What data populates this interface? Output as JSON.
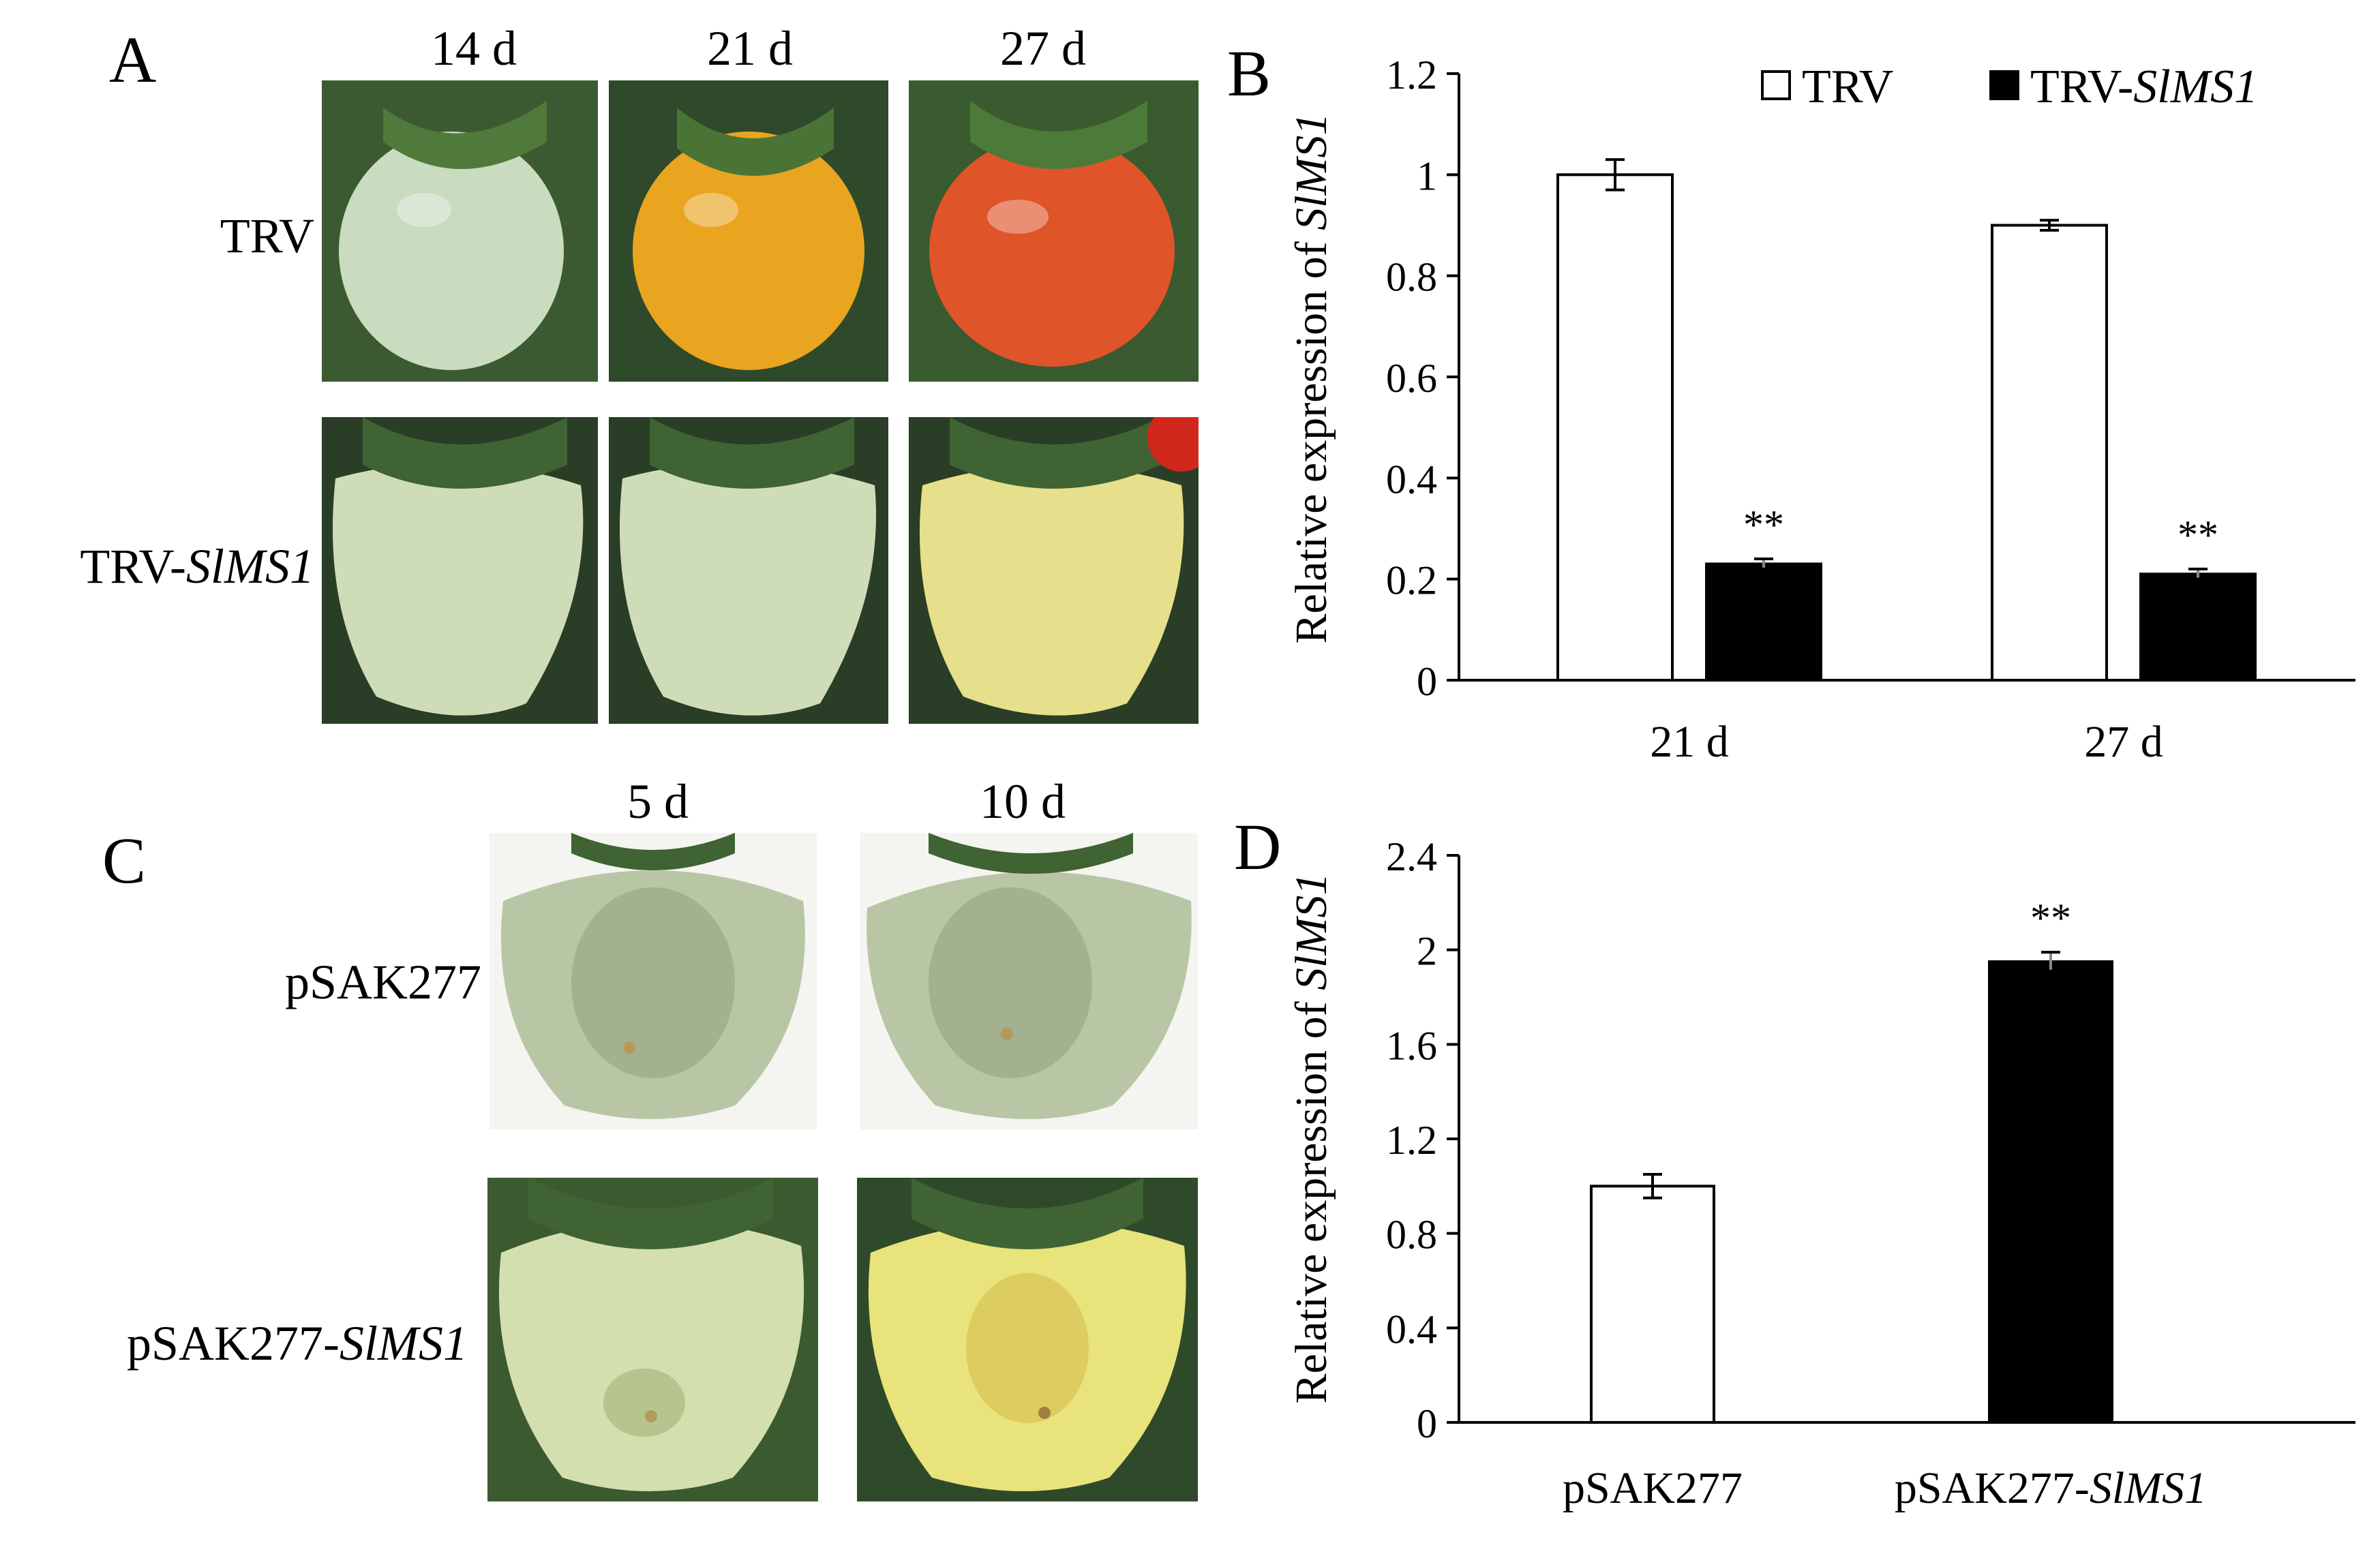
{
  "panels": {
    "A": {
      "letter": "A",
      "columns": [
        "14 d",
        "21 d",
        "27 d"
      ],
      "rows": [
        {
          "prefix": "TRV",
          "italic": ""
        },
        {
          "prefix": "TRV-",
          "italic": "SlMS1"
        }
      ],
      "fruit_colors": [
        [
          "#c9dcbf",
          "#e9a520",
          "#e0542a"
        ],
        [
          "#cfdcb8",
          "#cfdcb8",
          "#e6df8c"
        ]
      ]
    },
    "C": {
      "letter": "C",
      "columns": [
        "5 d",
        "10 d"
      ],
      "rows": [
        {
          "prefix": "pSAK277",
          "italic": ""
        },
        {
          "prefix": "pSAK277-",
          "italic": "SlMS1"
        }
      ],
      "fruit_colors": [
        [
          "#b8c6a6",
          "#b8c6a6"
        ],
        [
          "#d4dfb0",
          "#e8e37a"
        ]
      ]
    }
  },
  "chart_data": [
    {
      "panel": "B",
      "type": "bar",
      "letter": "B",
      "categories": [
        "21 d",
        "27 d"
      ],
      "series": [
        {
          "name_prefix": "TRV",
          "name_italic": "",
          "fill": "#ffffff",
          "values": [
            1.0,
            0.9
          ],
          "errors": [
            0.03,
            0.01
          ],
          "annotations": [
            "",
            ""
          ]
        },
        {
          "name_prefix": "TRV-",
          "name_italic": "SlMS1",
          "fill": "#000000",
          "values": [
            0.23,
            0.21
          ],
          "errors": [
            0.01,
            0.01
          ],
          "annotations": [
            "**",
            "**"
          ]
        }
      ],
      "ylabel_prefix": "Relative expression of ",
      "ylabel_italic": "SlMS1",
      "ylim": [
        0,
        1.2
      ],
      "yticks": [
        "0",
        "0.2",
        "0.4",
        "0.6",
        "0.8",
        "1",
        "1.2"
      ],
      "legend": "top-right",
      "grid": false
    },
    {
      "panel": "D",
      "type": "bar",
      "letter": "D",
      "categories": [
        {
          "prefix": "pSAK277",
          "italic": ""
        },
        {
          "prefix": "pSAK277-",
          "italic": "SlMS1"
        }
      ],
      "series": [
        {
          "fill_per_bar": [
            "#ffffff",
            "#000000"
          ],
          "values": [
            1.0,
            1.95
          ],
          "errors": [
            0.05,
            0.04
          ],
          "annotations": [
            "",
            "**"
          ]
        }
      ],
      "ylabel_prefix": "Relative expression of ",
      "ylabel_italic": "SlMS1",
      "ylim": [
        0,
        2.4
      ],
      "yticks": [
        "0",
        "0.4",
        "0.8",
        "1.2",
        "1.6",
        "2",
        "2.4"
      ],
      "grid": false
    }
  ]
}
